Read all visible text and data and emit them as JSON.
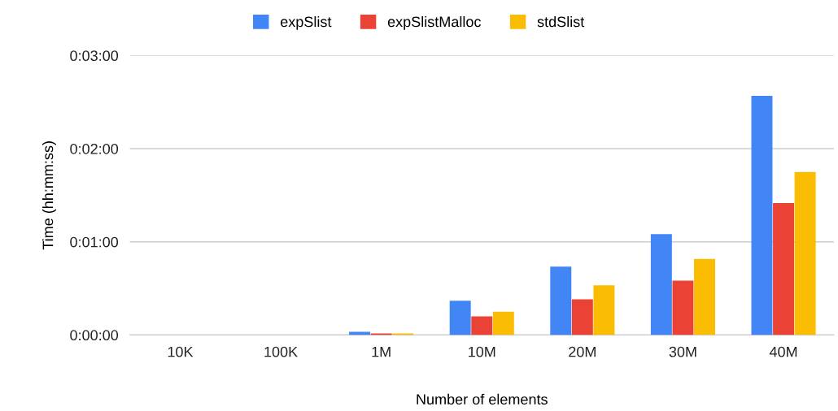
{
  "chart_data": {
    "type": "bar",
    "xlabel": "Number of elements",
    "ylabel": "Time (hh:mm:ss)",
    "categories": [
      "10K",
      "100K",
      "1M",
      "10M",
      "20M",
      "30M",
      "40M"
    ],
    "series": [
      {
        "name": "expSlist",
        "color": "#4285f4",
        "values": [
          0,
          0,
          2,
          22,
          44,
          65,
          154
        ]
      },
      {
        "name": "expSlistMalloc",
        "color": "#ea4335",
        "values": [
          0,
          0,
          1,
          12,
          23,
          35,
          85
        ]
      },
      {
        "name": "stdSlist",
        "color": "#fbbc04",
        "values": [
          0,
          0,
          1,
          15,
          32,
          49,
          105
        ]
      }
    ],
    "ylim": [
      0,
      180
    ],
    "yticks": [
      {
        "value": 0,
        "label": "0:00:00"
      },
      {
        "value": 60,
        "label": "0:01:00"
      },
      {
        "value": 120,
        "label": "0:02:00"
      },
      {
        "value": 180,
        "label": "0:03:00"
      }
    ],
    "grid": "y",
    "legend": "top"
  }
}
